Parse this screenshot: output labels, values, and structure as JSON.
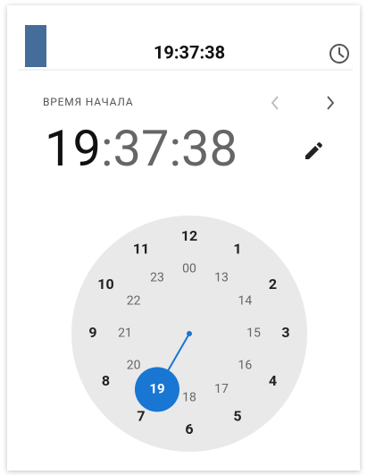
{
  "header": {
    "time": "19:37:38"
  },
  "picker": {
    "label": "ВРЕМЯ НАЧАЛА",
    "display": {
      "hours": "19",
      "rest": ":37:38"
    },
    "clock": {
      "outer": [
        "12",
        "1",
        "2",
        "3",
        "4",
        "5",
        "6",
        "7",
        "8",
        "9",
        "10",
        "11"
      ],
      "inner": [
        "00",
        "13",
        "14",
        "15",
        "16",
        "17",
        "18",
        "19",
        "20",
        "21",
        "22",
        "23"
      ]
    }
  }
}
